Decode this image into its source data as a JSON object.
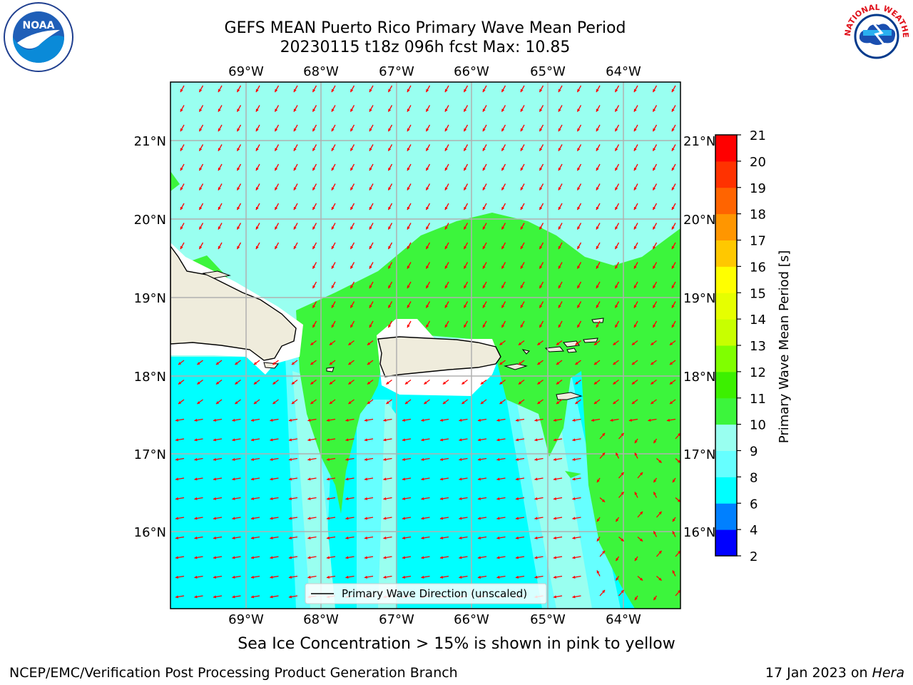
{
  "header": {
    "title_line1": "GEFS MEAN Puerto Rico Primary Wave Mean Period",
    "title_line2": "20230115 t18z 096h fcst   Max: 10.85"
  },
  "logos": {
    "left": {
      "name": "noaa-logo",
      "text": "NOAA"
    },
    "right": {
      "name": "nws-logo",
      "text": "NATIONAL WEATHER SERVICE"
    }
  },
  "map": {
    "lon_labels": [
      "69°W",
      "68°W",
      "67°W",
      "66°W",
      "65°W",
      "64°W"
    ],
    "lat_labels": [
      "21°N",
      "20°N",
      "19°N",
      "18°N",
      "17°N",
      "16°N"
    ],
    "legend": "Primary Wave Direction (unscaled)",
    "colors": {
      "land": "#efecdc",
      "grid": "#b0b0b0",
      "arrow": "#ff0000"
    }
  },
  "colorbar": {
    "label": "Primary Wave Mean Period [s]",
    "ticks": [
      "2",
      "4",
      "6",
      "8",
      "9",
      "10",
      "11",
      "12",
      "13",
      "14",
      "15",
      "16",
      "17",
      "18",
      "19",
      "20",
      "21"
    ],
    "colors": [
      "#0000ff",
      "#0080ff",
      "#00ffff",
      "#66ffff",
      "#99fff0",
      "#3cf53c",
      "#3cf000",
      "#80ff00",
      "#c8ff00",
      "#e6ff00",
      "#ffff00",
      "#ffc800",
      "#ff9600",
      "#ff6400",
      "#ff3200",
      "#ff0000"
    ]
  },
  "caption": "Sea Ice Concentration > 15% is shown in pink to yellow",
  "footer": {
    "left": "NCEP/EMC/Verification Post Processing Product Generation Branch",
    "right_date": "17 Jan 2023 on ",
    "right_host": "Hera"
  }
}
